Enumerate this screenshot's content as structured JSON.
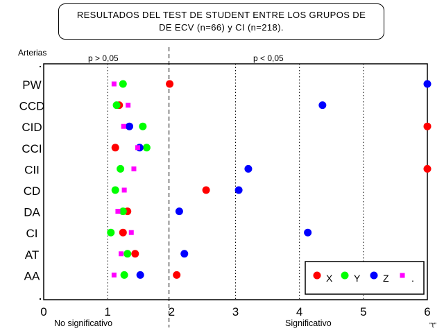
{
  "title": {
    "line1": "RESULTADOS DEL TEST DE STUDENT ENTRE LOS GRUPOS DE",
    "line2": "DE  ECV (n=66) y CI (n=218)."
  },
  "labels": {
    "arterias": "Arterias",
    "p_left": "p  >  0,05",
    "p_right": "p  <  0,05",
    "no_sig": "No significativo",
    "sig": "Significativo",
    "t_axis": "\"t\""
  },
  "chart_data": {
    "type": "scatter",
    "xlim": [
      0,
      6
    ],
    "xticks": [
      "0",
      "1",
      "2",
      "3",
      "4",
      "5",
      "6"
    ],
    "threshold_x": 1.96,
    "grid": "dotted vertical lines at x = 1, 3, 4, 5",
    "legend_position": "bottom-right",
    "categories": [
      "PW",
      "CCD",
      "CID",
      "CCI",
      "CII",
      "CD",
      "DA",
      "CI",
      "AT",
      "AA"
    ],
    "series": [
      {
        "name": "X",
        "color": "#ff0000",
        "marker": "circle",
        "values": [
          1.97,
          1.18,
          6.0,
          1.12,
          6.0,
          2.54,
          1.31,
          1.24,
          1.43,
          2.08
        ]
      },
      {
        "name": "Y",
        "color": "#00ff00",
        "marker": "circle",
        "values": [
          1.24,
          1.14,
          1.55,
          1.61,
          1.2,
          1.12,
          1.24,
          1.05,
          1.31,
          1.26
        ]
      },
      {
        "name": "Z",
        "color": "#0000ff",
        "marker": "circle",
        "values": [
          6.0,
          4.36,
          1.34,
          1.5,
          3.2,
          3.05,
          2.12,
          4.13,
          2.2,
          1.51
        ]
      },
      {
        "name": ".",
        "color": "#ff00ff",
        "marker": "square",
        "values": [
          1.1,
          1.32,
          1.25,
          1.47,
          1.41,
          1.26,
          1.16,
          1.37,
          1.21,
          1.1
        ]
      }
    ]
  }
}
